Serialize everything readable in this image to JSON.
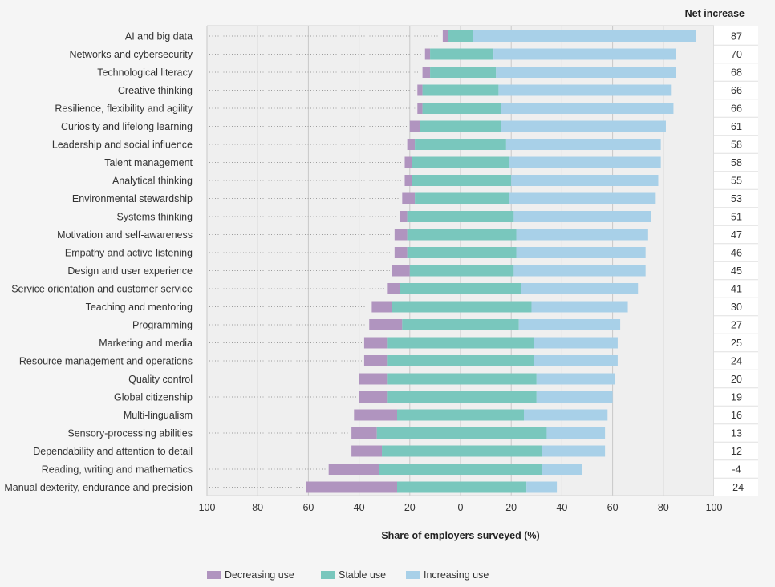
{
  "chart_data": {
    "type": "bar",
    "orientation": "horizontal-diverging-stacked",
    "net_header": "Net increase",
    "xlabel": "Share of employers surveyed (%)",
    "xlim": [
      -100,
      100
    ],
    "x_ticks": [
      100,
      80,
      60,
      40,
      20,
      0,
      20,
      40,
      60,
      80,
      100
    ],
    "legend": [
      {
        "name": "Decreasing use",
        "color": "#b094bf"
      },
      {
        "name": "Stable use",
        "color": "#79c7bd"
      },
      {
        "name": "Increasing use",
        "color": "#a8d0e8"
      }
    ],
    "categories": [
      "AI and big data",
      "Networks and cybersecurity",
      "Technological literacy",
      "Creative thinking",
      "Resilience, flexibility and agility",
      "Curiosity and lifelong learning",
      "Leadership and social influence",
      "Talent management",
      "Analytical thinking",
      "Environmental stewardship",
      "Systems thinking",
      "Motivation and self-awareness",
      "Empathy and active listening",
      "Design and user experience",
      "Service orientation and customer service",
      "Teaching and mentoring",
      "Programming",
      "Marketing and media",
      "Resource management and operations",
      "Quality control",
      "Global citizenship",
      "Multi-lingualism",
      "Sensory-processing abilities",
      "Dependability and attention to detail",
      "Reading, writing and mathematics",
      "Manual dexterity, endurance and precision"
    ],
    "series": [
      {
        "name": "Decreasing use",
        "values": [
          2,
          2,
          3,
          2,
          2,
          4,
          3,
          3,
          3,
          5,
          3,
          5,
          5,
          7,
          5,
          8,
          13,
          9,
          9,
          11,
          11,
          17,
          10,
          12,
          20,
          36
        ]
      },
      {
        "name": "Stable use",
        "values": [
          10,
          25,
          26,
          30,
          31,
          32,
          36,
          38,
          39,
          37,
          42,
          43,
          43,
          41,
          48,
          55,
          46,
          58,
          58,
          59,
          59,
          50,
          67,
          63,
          64,
          51
        ]
      },
      {
        "name": "Increasing use",
        "values": [
          88,
          72,
          71,
          68,
          68,
          65,
          61,
          60,
          58,
          58,
          54,
          52,
          51,
          52,
          46,
          38,
          40,
          33,
          33,
          31,
          30,
          33,
          23,
          25,
          16,
          12
        ]
      }
    ],
    "stable_offsets": [
      -5,
      -12,
      -12,
      -15,
      -15,
      -16,
      -18,
      -19,
      -19,
      -18,
      -21,
      -21,
      -21,
      -20,
      -24,
      -27,
      -23,
      -29,
      -29,
      -29,
      -29,
      -25,
      -33,
      -31,
      -32,
      -25
    ],
    "net_increase": [
      "87",
      "70",
      "68",
      "66",
      "66",
      "61",
      "58",
      "58",
      "55",
      "53",
      "51",
      "47",
      "46",
      "45",
      "41",
      "30",
      "27",
      "25",
      "24",
      "20",
      "19",
      "16",
      "13",
      "12",
      "-4",
      "-24"
    ]
  }
}
